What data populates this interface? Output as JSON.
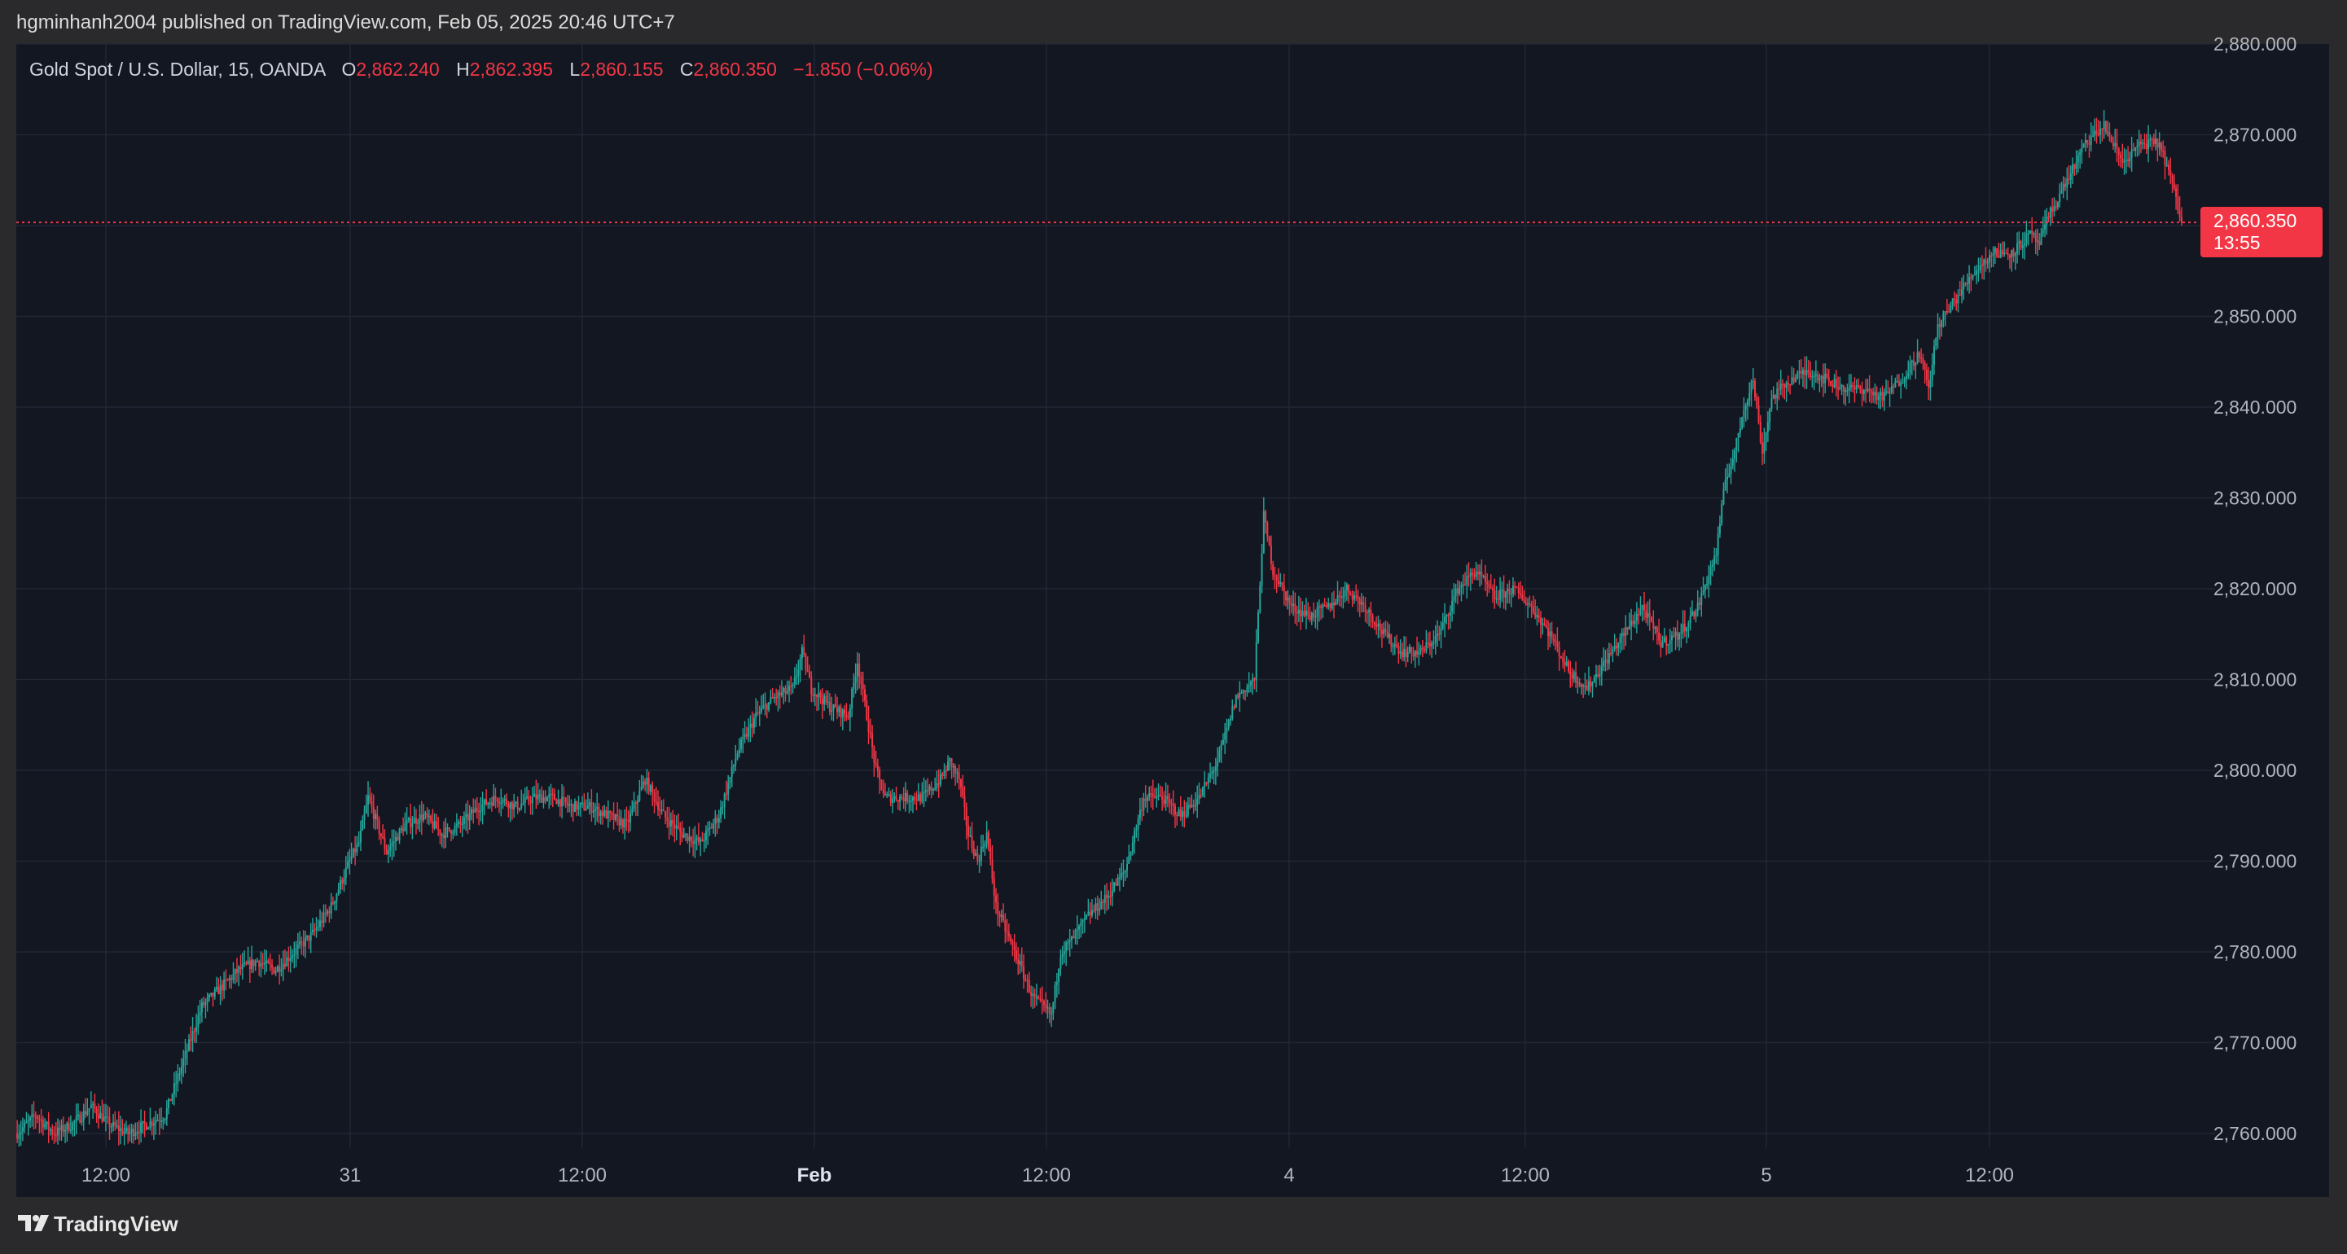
{
  "header": {
    "published_text": "hgminhanh2004 published on TradingView.com, Feb 05, 2025 20:46 UTC+7"
  },
  "legend": {
    "symbol": "Gold Spot / U.S. Dollar, 15, OANDA",
    "open_label": "O",
    "open_value": "2,862.240",
    "high_label": "H",
    "high_value": "2,862.395",
    "low_label": "L",
    "low_value": "2,860.155",
    "close_label": "C",
    "close_value": "2,860.350",
    "change": "−1.850 (−0.06%)"
  },
  "last_price": {
    "value": "2,860.350",
    "countdown": "13:55"
  },
  "footer": {
    "brand": "TradingView",
    "logo_icon": "tradingview-logo-icon"
  },
  "colors": {
    "background": "#131722",
    "frame": "#2a2a2c",
    "grid": "#232734",
    "up": "#26a69a",
    "down": "#f23645",
    "text": "#b2b5be",
    "legend_text": "#d1d4dc"
  },
  "chart_data": {
    "type": "candlestick",
    "title": "Gold Spot / U.S. Dollar, 15, OANDA",
    "ylim": [
      2753,
      2880
    ],
    "y_ticks": [
      2760,
      2770,
      2780,
      2790,
      2800,
      2810,
      2820,
      2830,
      2840,
      2850,
      2860,
      2870,
      2880
    ],
    "y_tick_labels": [
      "2,760.000",
      "2,770.000",
      "2,780.000",
      "2,790.000",
      "2,800.000",
      "2,810.000",
      "2,820.000",
      "2,830.000",
      "2,840.000",
      "2,850.000",
      "2,860.000",
      "2,870.000",
      "2,880.000"
    ],
    "x_ticks": [
      "12:00",
      "31",
      "12:00",
      "Feb",
      "12:00",
      "4",
      "12:00",
      "5",
      "12:00"
    ],
    "x_tick_bold": [
      false,
      false,
      false,
      true,
      false,
      false,
      false,
      false,
      false
    ],
    "last_price": 2860.35,
    "close_path": [
      [
        0,
        2760
      ],
      [
        5,
        2761
      ],
      [
        10,
        2762
      ],
      [
        20,
        2760
      ],
      [
        30,
        2761
      ],
      [
        40,
        2763
      ],
      [
        50,
        2761
      ],
      [
        60,
        2760
      ],
      [
        70,
        2761
      ],
      [
        80,
        2762
      ],
      [
        90,
        2768
      ],
      [
        100,
        2774
      ],
      [
        110,
        2776
      ],
      [
        120,
        2778
      ],
      [
        130,
        2779
      ],
      [
        140,
        2778
      ],
      [
        150,
        2780
      ],
      [
        160,
        2782
      ],
      [
        170,
        2785
      ],
      [
        180,
        2790
      ],
      [
        185,
        2792
      ],
      [
        190,
        2797
      ],
      [
        195,
        2794
      ],
      [
        200,
        2791
      ],
      [
        210,
        2794
      ],
      [
        220,
        2795
      ],
      [
        230,
        2793
      ],
      [
        240,
        2794
      ],
      [
        250,
        2796
      ],
      [
        260,
        2797
      ],
      [
        270,
        2796
      ],
      [
        280,
        2797
      ],
      [
        290,
        2797
      ],
      [
        300,
        2796
      ],
      [
        310,
        2796
      ],
      [
        320,
        2795
      ],
      [
        330,
        2794
      ],
      [
        340,
        2799
      ],
      [
        350,
        2795
      ],
      [
        360,
        2793
      ],
      [
        370,
        2792
      ],
      [
        380,
        2795
      ],
      [
        390,
        2802
      ],
      [
        400,
        2806
      ],
      [
        410,
        2808
      ],
      [
        420,
        2809
      ],
      [
        425,
        2813
      ],
      [
        430,
        2809
      ],
      [
        440,
        2807
      ],
      [
        450,
        2806
      ],
      [
        455,
        2812
      ],
      [
        460,
        2806
      ],
      [
        465,
        2800
      ],
      [
        470,
        2797
      ],
      [
        480,
        2797
      ],
      [
        490,
        2797
      ],
      [
        500,
        2799
      ],
      [
        505,
        2801
      ],
      [
        510,
        2799
      ],
      [
        515,
        2793
      ],
      [
        520,
        2790
      ],
      [
        525,
        2793
      ],
      [
        530,
        2785
      ],
      [
        540,
        2780
      ],
      [
        550,
        2775
      ],
      [
        560,
        2773
      ],
      [
        565,
        2780
      ],
      [
        570,
        2781
      ],
      [
        580,
        2784
      ],
      [
        590,
        2786
      ],
      [
        600,
        2789
      ],
      [
        610,
        2797
      ],
      [
        620,
        2797
      ],
      [
        630,
        2795
      ],
      [
        640,
        2797
      ],
      [
        650,
        2801
      ],
      [
        660,
        2808
      ],
      [
        670,
        2810
      ],
      [
        675,
        2828
      ],
      [
        680,
        2822
      ],
      [
        690,
        2818
      ],
      [
        700,
        2817
      ],
      [
        710,
        2818
      ],
      [
        720,
        2820
      ],
      [
        730,
        2818
      ],
      [
        740,
        2815
      ],
      [
        750,
        2813
      ],
      [
        760,
        2813
      ],
      [
        770,
        2815
      ],
      [
        780,
        2820
      ],
      [
        790,
        2822
      ],
      [
        800,
        2819
      ],
      [
        810,
        2820
      ],
      [
        820,
        2818
      ],
      [
        830,
        2815
      ],
      [
        840,
        2811
      ],
      [
        850,
        2809
      ],
      [
        860,
        2812
      ],
      [
        870,
        2815
      ],
      [
        880,
        2818
      ],
      [
        890,
        2814
      ],
      [
        900,
        2815
      ],
      [
        910,
        2818
      ],
      [
        920,
        2824
      ],
      [
        925,
        2832
      ],
      [
        930,
        2835
      ],
      [
        935,
        2840
      ],
      [
        940,
        2843
      ],
      [
        945,
        2835
      ],
      [
        950,
        2841
      ],
      [
        960,
        2843
      ],
      [
        970,
        2844
      ],
      [
        980,
        2843
      ],
      [
        990,
        2842
      ],
      [
        1000,
        2842
      ],
      [
        1010,
        2841
      ],
      [
        1020,
        2843
      ],
      [
        1030,
        2846
      ],
      [
        1035,
        2842
      ],
      [
        1040,
        2849
      ],
      [
        1050,
        2852
      ],
      [
        1060,
        2855
      ],
      [
        1070,
        2857
      ],
      [
        1080,
        2857
      ],
      [
        1090,
        2859
      ],
      [
        1095,
        2858
      ],
      [
        1100,
        2861
      ],
      [
        1110,
        2865
      ],
      [
        1120,
        2869
      ],
      [
        1130,
        2871
      ],
      [
        1135,
        2869
      ],
      [
        1140,
        2867
      ],
      [
        1150,
        2869
      ],
      [
        1160,
        2869
      ],
      [
        1165,
        2866
      ],
      [
        1170,
        2862
      ],
      [
        1172,
        2860.35
      ]
    ]
  }
}
